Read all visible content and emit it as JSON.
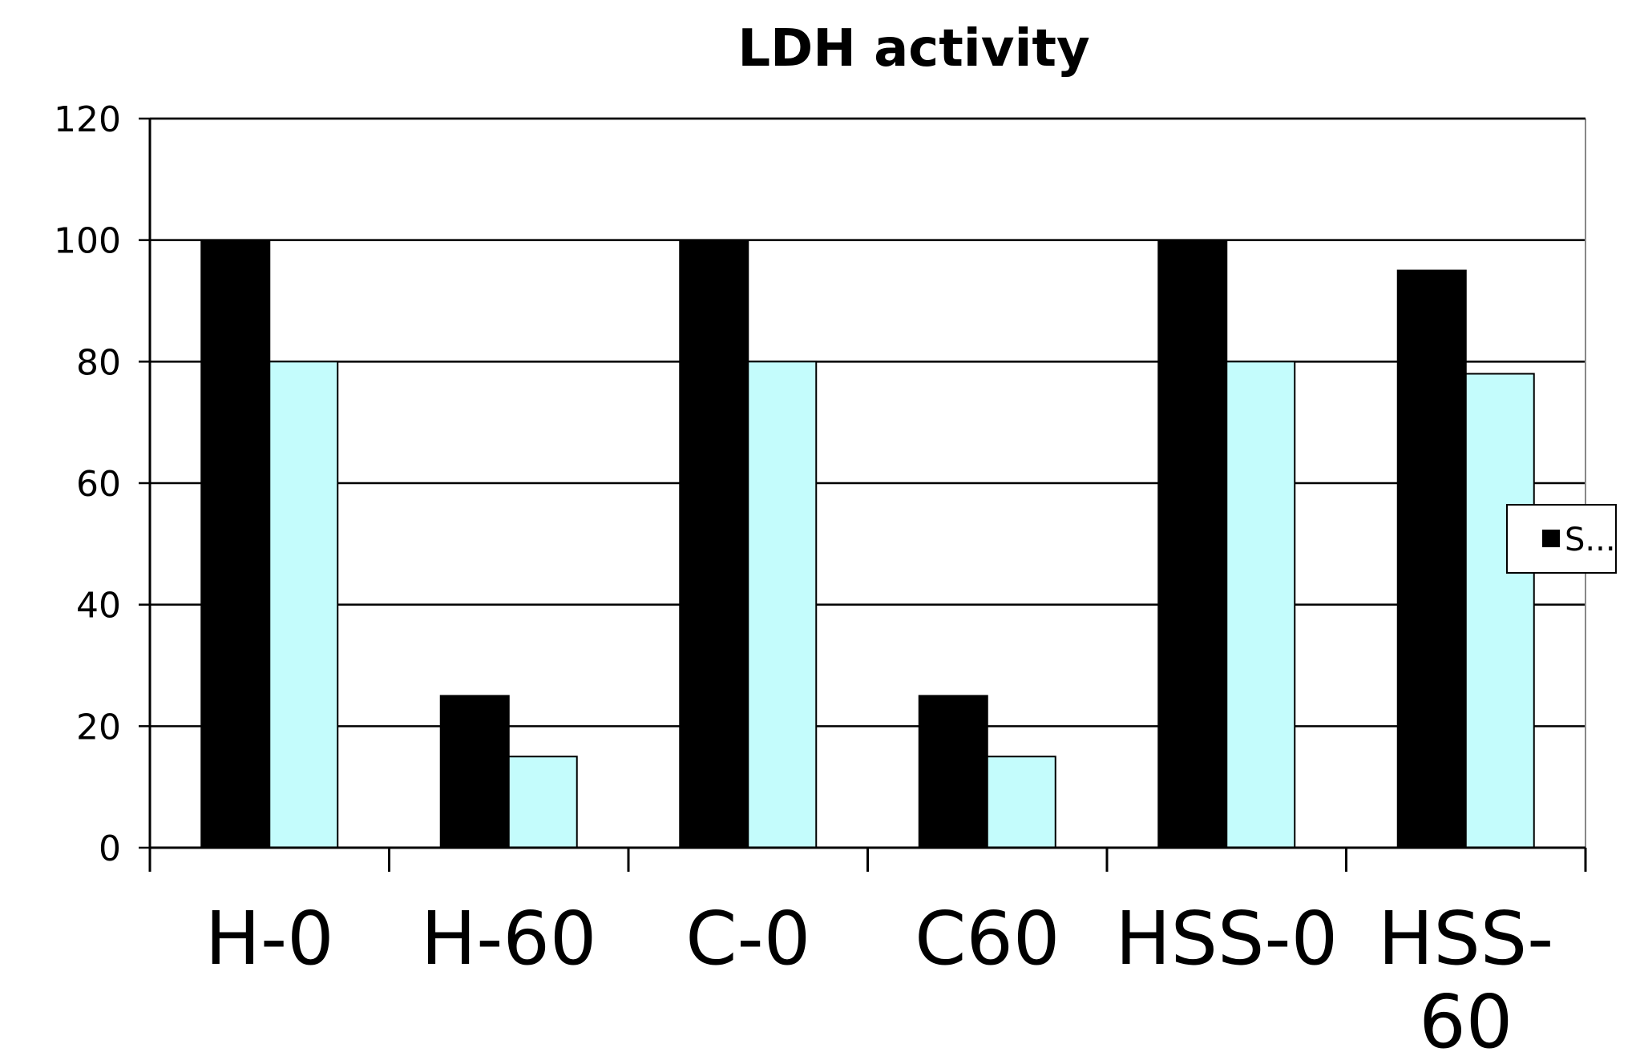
{
  "chart_data": {
    "type": "bar",
    "title": "LDH activity",
    "xlabel": "",
    "ylabel": "",
    "categories": [
      "H-0",
      "H-60",
      "C-0",
      "C60",
      "HSS-0",
      "HSS-60"
    ],
    "category_label_lines": [
      [
        "H-0"
      ],
      [
        "H-60"
      ],
      [
        "C-0"
      ],
      [
        "C60"
      ],
      [
        "HSS-0"
      ],
      [
        "HSS-",
        "60"
      ]
    ],
    "series": [
      {
        "values": [
          100,
          25,
          100,
          25,
          100,
          95
        ],
        "color": "#000000"
      },
      {
        "values": [
          80,
          15,
          80,
          15,
          80,
          78
        ],
        "color": "#c4fcfc"
      }
    ],
    "ylim": [
      0,
      120
    ],
    "yticks": [
      0,
      20,
      40,
      60,
      80,
      100,
      120
    ],
    "grid": true,
    "legend": {
      "placement": "right",
      "entries": [
        {
          "label": "S...",
          "color": "#000000"
        }
      ]
    }
  }
}
